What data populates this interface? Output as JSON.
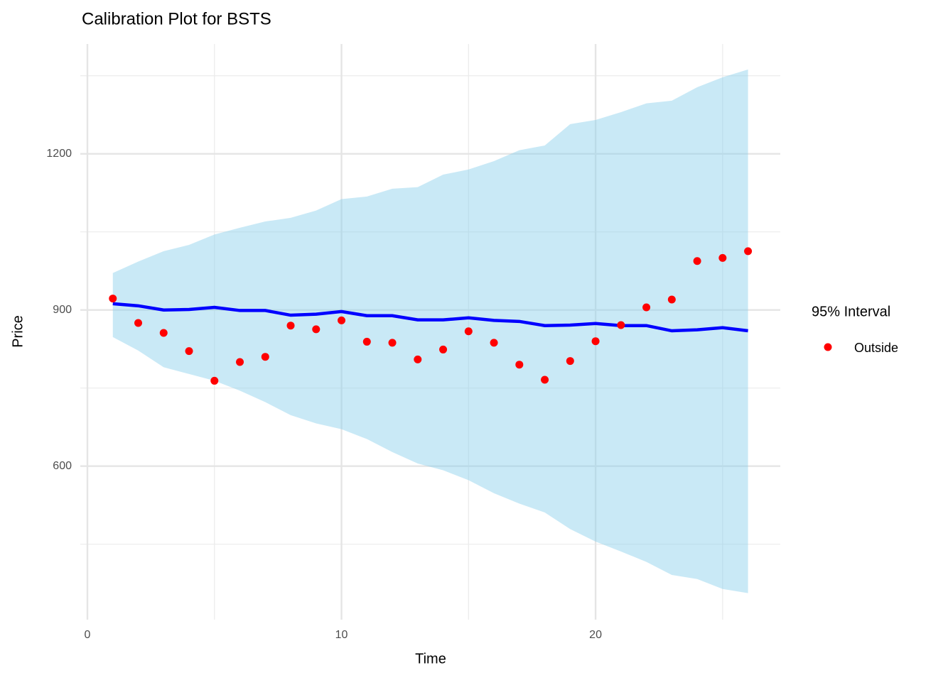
{
  "chart_data": {
    "type": "band-line-scatter",
    "title": "Calibration Plot for BSTS",
    "x_label": "Time",
    "y_label": "Price",
    "x": [
      1,
      2,
      3,
      4,
      5,
      6,
      7,
      8,
      9,
      10,
      11,
      12,
      13,
      14,
      15,
      16,
      17,
      18,
      19,
      20,
      21,
      22,
      23,
      24,
      25,
      26
    ],
    "ribbon": {
      "color": "#87ceeb",
      "lower": [
        848,
        822,
        790,
        777,
        764,
        745,
        723,
        698,
        682,
        671,
        652,
        627,
        605,
        592,
        573,
        548,
        528,
        511,
        479,
        455,
        436,
        416,
        391,
        383,
        364,
        356
      ],
      "upper": [
        971,
        993,
        1013,
        1025,
        1045,
        1058,
        1070,
        1077,
        1091,
        1113,
        1118,
        1133,
        1136,
        1160,
        1170,
        1186,
        1207,
        1216,
        1257,
        1265,
        1280,
        1297,
        1302,
        1328,
        1347,
        1362
      ]
    },
    "line": {
      "color": "#0000ff",
      "values": [
        912,
        908,
        900,
        901,
        905,
        899,
        899,
        890,
        892,
        897,
        889,
        889,
        881,
        881,
        885,
        880,
        878,
        870,
        871,
        874,
        870,
        870,
        860,
        862,
        866,
        860
      ]
    },
    "points": {
      "name": "Outside",
      "color": "#ff0000",
      "values": [
        922,
        875,
        856,
        821,
        764,
        800,
        810,
        870,
        863,
        880,
        839,
        837,
        805,
        824,
        859,
        837,
        795,
        766,
        802,
        840,
        871,
        905,
        920,
        994,
        1000,
        1013
      ]
    },
    "legend_title": "95% Interval",
    "legend": "right",
    "xlim": [
      -0.28,
      27.27
    ],
    "ylim": [
      305,
      1411
    ],
    "xticks": [
      0,
      10,
      20
    ],
    "yticks": [
      600,
      900,
      1200
    ],
    "x_minor_ticks": [
      5,
      15,
      25
    ],
    "y_minor_ticks": [
      450,
      750,
      1050,
      1350
    ],
    "grid": true
  }
}
